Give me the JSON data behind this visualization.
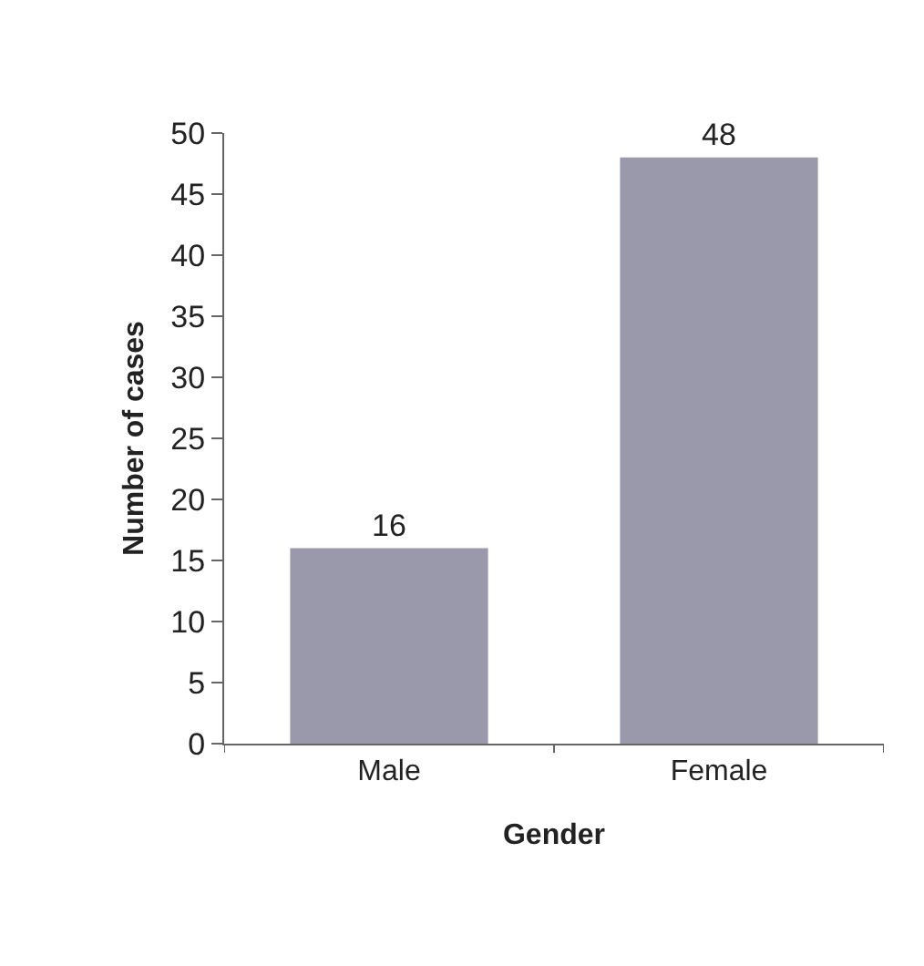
{
  "chart_data": {
    "type": "bar",
    "categories": [
      "Male",
      "Female"
    ],
    "values": [
      16,
      48
    ],
    "color": "#9a98ab",
    "xlabel": "Gender",
    "ylabel": "Number of cases",
    "ylim": [
      0,
      50
    ],
    "yticks": [
      0,
      5,
      10,
      15,
      20,
      25,
      30,
      35,
      40,
      45,
      50
    ],
    "data_labels": true
  }
}
